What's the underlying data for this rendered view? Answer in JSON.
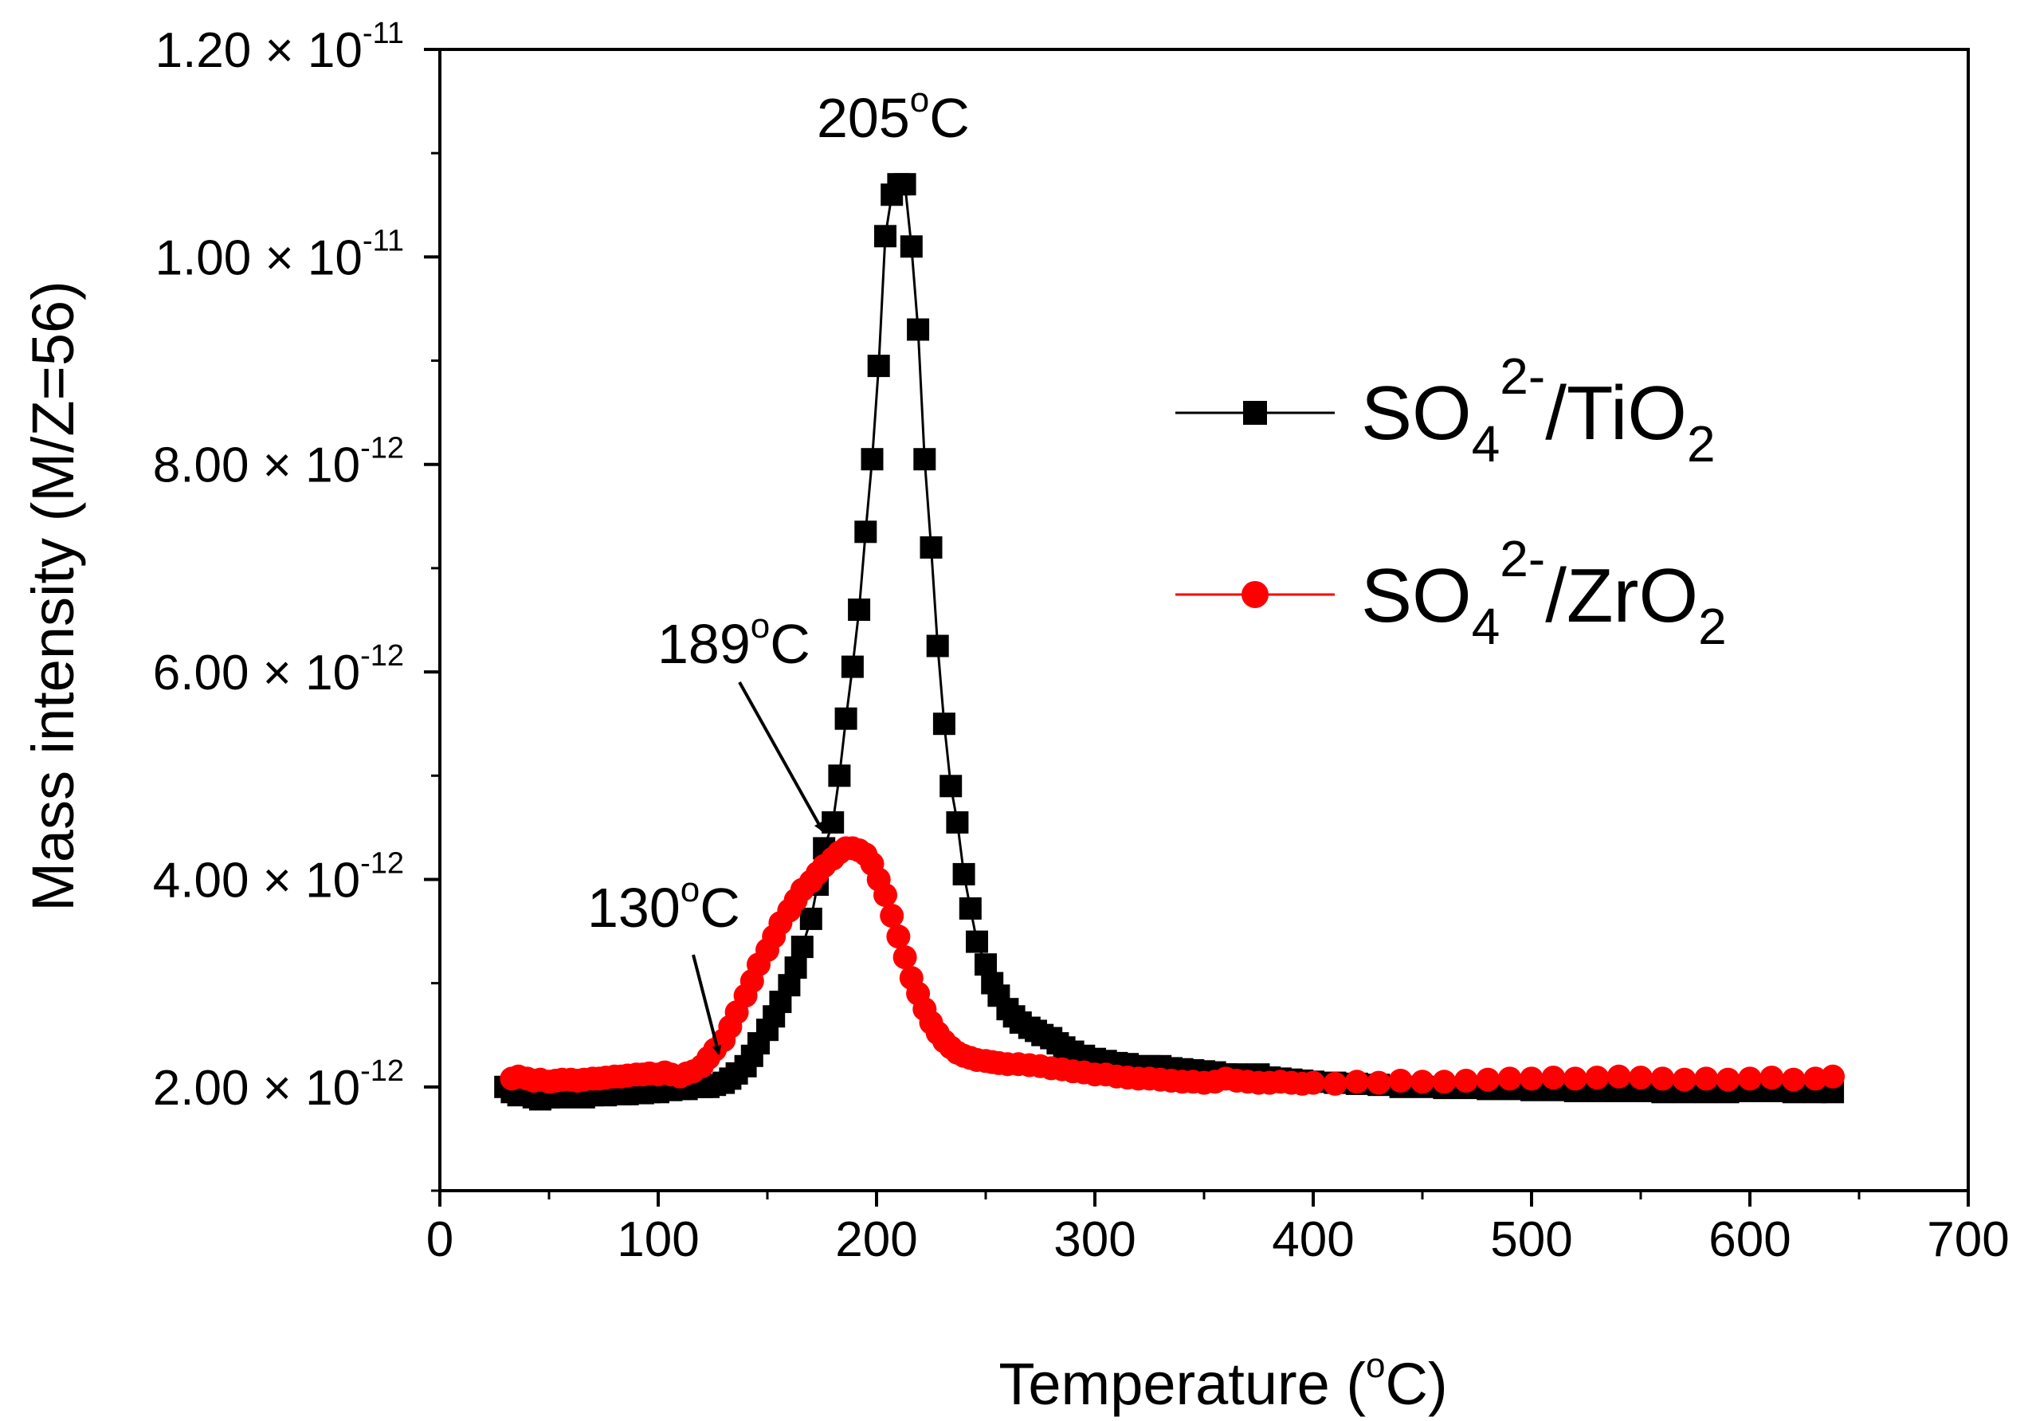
{
  "chart_data": {
    "type": "scatter",
    "xlabel": {
      "text": "Temperature (",
      "sup": "o",
      "after": "C)"
    },
    "ylabel": "Mass intensity (M/Z=56)",
    "xlim": [
      0,
      700
    ],
    "ylim": [
      1e-12,
      1.2e-11
    ],
    "xticks": [
      "0",
      "100",
      "200",
      "300",
      "400",
      "500",
      "600",
      "700"
    ],
    "xtick_values": [
      0,
      100,
      200,
      300,
      400,
      500,
      600,
      700
    ],
    "yticks": [
      {
        "value": 2e-12,
        "mantissa": "2.00",
        "times": "×",
        "base": "10",
        "exponent": "-12"
      },
      {
        "value": 4e-12,
        "mantissa": "4.00",
        "times": "×",
        "base": "10",
        "exponent": "-12"
      },
      {
        "value": 6e-12,
        "mantissa": "6.00",
        "times": "×",
        "base": "10",
        "exponent": "-12"
      },
      {
        "value": 8e-12,
        "mantissa": "8.00",
        "times": "×",
        "base": "10",
        "exponent": "-12"
      },
      {
        "value": 1e-11,
        "mantissa": "1.00",
        "times": "×",
        "base": "10",
        "exponent": "-11"
      },
      {
        "value": 1.2e-11,
        "mantissa": "1.20",
        "times": "×",
        "base": "10",
        "exponent": "-11"
      }
    ],
    "legend_position": "right",
    "series": [
      {
        "name": "SO4 2-/TiO2",
        "label": {
          "p1": "SO",
          "sub1": "4",
          "sup": "2-",
          "p2": "/TiO",
          "sub2": "2"
        },
        "color": "#000000",
        "marker": "square",
        "x": [
          30,
          33,
          36,
          40,
          43,
          46,
          50,
          53,
          56,
          60,
          63,
          66,
          70,
          73,
          76,
          80,
          83,
          86,
          90,
          93,
          96,
          100,
          103,
          106,
          110,
          113,
          116,
          120,
          123,
          126,
          130,
          133,
          136,
          140,
          143,
          146,
          150,
          153,
          156,
          160,
          163,
          166,
          170,
          173,
          176,
          180,
          183,
          186,
          189,
          192,
          195,
          198,
          201,
          204,
          207,
          210,
          213,
          216,
          219,
          222,
          225,
          228,
          231,
          234,
          237,
          240,
          243,
          246,
          250,
          253,
          256,
          260,
          263,
          266,
          270,
          273,
          276,
          280,
          283,
          286,
          290,
          295,
          300,
          305,
          310,
          315,
          320,
          325,
          330,
          335,
          340,
          345,
          350,
          355,
          360,
          365,
          370,
          375,
          380,
          385,
          390,
          395,
          400,
          410,
          420,
          430,
          440,
          450,
          460,
          470,
          480,
          490,
          500,
          510,
          520,
          530,
          540,
          550,
          560,
          570,
          580,
          590,
          600,
          610,
          620,
          630,
          638
        ],
        "y": [
          2e-12,
          1.95e-12,
          1.92e-12,
          1.93e-12,
          1.9e-12,
          1.88e-12,
          1.9e-12,
          1.92e-12,
          1.9e-12,
          1.93e-12,
          1.92e-12,
          1.9e-12,
          1.92e-12,
          1.93e-12,
          1.92e-12,
          1.95e-12,
          1.93e-12,
          1.93e-12,
          1.95e-12,
          1.94e-12,
          1.95e-12,
          1.95e-12,
          1.98e-12,
          1.97e-12,
          1.98e-12,
          1.98e-12,
          2e-12,
          2e-12,
          2e-12,
          2.02e-12,
          2.04e-12,
          2.08e-12,
          2.13e-12,
          2.2e-12,
          2.3e-12,
          2.42e-12,
          2.55e-12,
          2.68e-12,
          2.82e-12,
          2.98e-12,
          3.15e-12,
          3.35e-12,
          3.62e-12,
          3.95e-12,
          4.3e-12,
          4.55e-12,
          5e-12,
          5.55e-12,
          6.05e-12,
          6.6e-12,
          7.35e-12,
          8.05e-12,
          8.95e-12,
          1.02e-11,
          1.06e-11,
          1.07e-11,
          1.07e-11,
          1.01e-11,
          9.3e-12,
          8.05e-12,
          7.2e-12,
          6.25e-12,
          5.5e-12,
          4.9e-12,
          4.55e-12,
          4.05e-12,
          3.72e-12,
          3.4e-12,
          3.18e-12,
          3e-12,
          2.88e-12,
          2.75e-12,
          2.68e-12,
          2.62e-12,
          2.57e-12,
          2.54e-12,
          2.5e-12,
          2.47e-12,
          2.42e-12,
          2.38e-12,
          2.34e-12,
          2.3e-12,
          2.27e-12,
          2.25e-12,
          2.23e-12,
          2.22e-12,
          2.2e-12,
          2.2e-12,
          2.2e-12,
          2.18e-12,
          2.17e-12,
          2.16e-12,
          2.15e-12,
          2.14e-12,
          2.12e-12,
          2.12e-12,
          2.11e-12,
          2.12e-12,
          2.09e-12,
          2.08e-12,
          2.07e-12,
          2.06e-12,
          2.05e-12,
          2.04e-12,
          2.03e-12,
          2.02e-12,
          2e-12,
          2e-12,
          1.99e-12,
          1.99e-12,
          1.98e-12,
          1.98e-12,
          1.97e-12,
          1.97e-12,
          1.96e-12,
          1.96e-12,
          1.96e-12,
          1.96e-12,
          1.95e-12,
          1.95e-12,
          1.95e-12,
          1.95e-12,
          1.96e-12,
          1.96e-12,
          1.95e-12,
          1.95e-12,
          1.95e-12
        ]
      },
      {
        "name": "SO4 2-/ZrO2",
        "label": {
          "p1": "SO",
          "sub1": "4",
          "sup": "2-",
          "p2": "/ZrO",
          "sub2": "2"
        },
        "color": "#ff0000",
        "marker": "circle",
        "x": [
          33,
          36,
          40,
          43,
          46,
          50,
          53,
          56,
          60,
          63,
          66,
          70,
          73,
          76,
          80,
          83,
          86,
          90,
          93,
          96,
          100,
          103,
          106,
          110,
          113,
          116,
          120,
          123,
          126,
          130,
          133,
          136,
          140,
          143,
          146,
          150,
          153,
          156,
          160,
          163,
          166,
          170,
          173,
          176,
          180,
          183,
          186,
          189,
          192,
          195,
          198,
          201,
          204,
          207,
          210,
          213,
          216,
          219,
          222,
          225,
          228,
          231,
          234,
          237,
          240,
          243,
          246,
          250,
          253,
          256,
          260,
          265,
          270,
          275,
          280,
          285,
          290,
          295,
          300,
          305,
          310,
          315,
          320,
          325,
          330,
          335,
          340,
          345,
          350,
          355,
          360,
          365,
          370,
          375,
          380,
          385,
          390,
          395,
          400,
          410,
          420,
          430,
          440,
          450,
          460,
          470,
          480,
          490,
          500,
          510,
          520,
          530,
          540,
          550,
          560,
          570,
          580,
          590,
          600,
          610,
          620,
          630,
          638
        ],
        "y": [
          2.08e-12,
          2.1e-12,
          2.08e-12,
          2.06e-12,
          2.07e-12,
          2.05e-12,
          2.06e-12,
          2.07e-12,
          2.07e-12,
          2.06e-12,
          2.07e-12,
          2.08e-12,
          2.08e-12,
          2.09e-12,
          2.1e-12,
          2.1e-12,
          2.11e-12,
          2.12e-12,
          2.12e-12,
          2.13e-12,
          2.12e-12,
          2.14e-12,
          2.12e-12,
          2.1e-12,
          2.13e-12,
          2.15e-12,
          2.2e-12,
          2.28e-12,
          2.36e-12,
          2.45e-12,
          2.58e-12,
          2.72e-12,
          2.88e-12,
          3.02e-12,
          3.18e-12,
          3.32e-12,
          3.45e-12,
          3.58e-12,
          3.7e-12,
          3.8e-12,
          3.9e-12,
          3.98e-12,
          4.06e-12,
          4.13e-12,
          4.2e-12,
          4.26e-12,
          4.3e-12,
          4.3e-12,
          4.28e-12,
          4.24e-12,
          4.15e-12,
          4e-12,
          3.85e-12,
          3.65e-12,
          3.45e-12,
          3.25e-12,
          3.05e-12,
          2.9e-12,
          2.75e-12,
          2.62e-12,
          2.52e-12,
          2.44e-12,
          2.38e-12,
          2.33e-12,
          2.3e-12,
          2.28e-12,
          2.26e-12,
          2.25e-12,
          2.24e-12,
          2.23e-12,
          2.22e-12,
          2.22e-12,
          2.21e-12,
          2.2e-12,
          2.18e-12,
          2.17e-12,
          2.15e-12,
          2.14e-12,
          2.12e-12,
          2.12e-12,
          2.1e-12,
          2.09e-12,
          2.08e-12,
          2.08e-12,
          2.07e-12,
          2.06e-12,
          2.05e-12,
          2.05e-12,
          2.04e-12,
          2.05e-12,
          2.08e-12,
          2.06e-12,
          2.05e-12,
          2.04e-12,
          2.04e-12,
          2.05e-12,
          2.04e-12,
          2.03e-12,
          2.04e-12,
          2.03e-12,
          2.05e-12,
          2.04e-12,
          2.06e-12,
          2.05e-12,
          2.05e-12,
          2.06e-12,
          2.07e-12,
          2.08e-12,
          2.08e-12,
          2.09e-12,
          2.08e-12,
          2.09e-12,
          2.1e-12,
          2.09e-12,
          2.08e-12,
          2.07e-12,
          2.08e-12,
          2.07e-12,
          2.08e-12,
          2.09e-12,
          2.07e-12,
          2.08e-12,
          2.1e-12
        ]
      }
    ],
    "annotations": [
      {
        "number": "205",
        "sup": "o",
        "unit": "C",
        "x": 205,
        "y": 1.07e-11,
        "arrow": false
      },
      {
        "number": "189",
        "sup": "o",
        "unit": "C",
        "x": 189,
        "y": 4.3e-12,
        "arrow": true
      },
      {
        "number": "130",
        "sup": "o",
        "unit": "C",
        "x": 130,
        "y": 2.2e-12,
        "arrow": true
      }
    ]
  }
}
